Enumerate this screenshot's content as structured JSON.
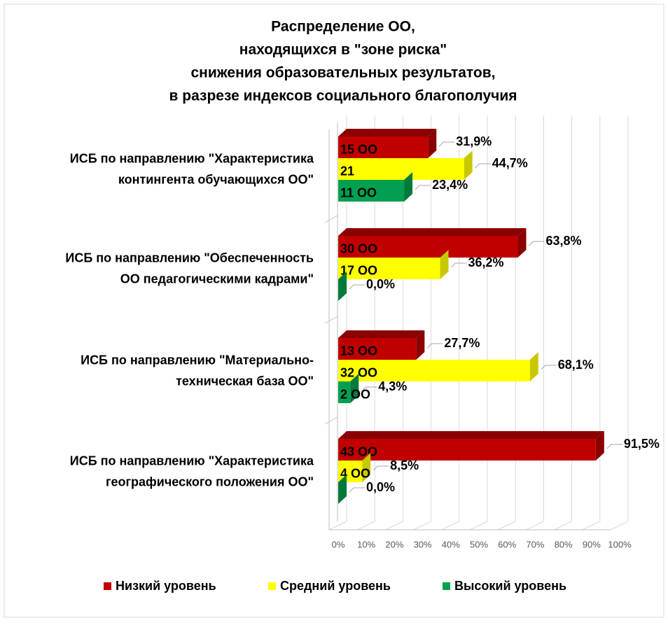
{
  "chart_data": {
    "type": "bar3d-horizontal",
    "title": [
      "Распределение ОО,",
      "находящихся в \"зоне риска\"",
      "снижения образовательных результатов,",
      "в разрезе индексов социального благополучия"
    ],
    "categories": [
      [
        "ИСБ по направлению \"Характеристика",
        "контингента обучающихся ОО\""
      ],
      [
        "ИСБ по направлению \"Обеспеченность",
        "ОО педагогическими кадрами\""
      ],
      [
        "ИСБ по направлению \"Материально-",
        "техническая база ОО\""
      ],
      [
        "ИСБ по направлению \"Характеристика",
        "географического положения ОО\""
      ]
    ],
    "series": [
      {
        "name": "Низкий уровень",
        "color": "#c00000",
        "side_color": "#8b0000",
        "values": [
          31.9,
          63.8,
          27.7,
          91.5
        ],
        "value_labels": [
          "31,9%",
          "63,8%",
          "27,7%",
          "91,5%"
        ],
        "count_labels": [
          "15  ОО",
          "30  ОО",
          "13  ОО",
          "43  ОО"
        ]
      },
      {
        "name": "Средний уровень",
        "color": "#ffff00",
        "side_color": "#c8c800",
        "values": [
          44.7,
          36.2,
          68.1,
          8.5
        ],
        "value_labels": [
          "44,7%",
          "36,2%",
          "68,1%",
          "8,5%"
        ],
        "count_labels": [
          "21",
          "17  ОО",
          "32  ОО",
          "4  ОО"
        ]
      },
      {
        "name": "Высокий уровень",
        "color": "#00a050",
        "side_color": "#007a3a",
        "values": [
          23.4,
          0.0,
          4.3,
          0.0
        ],
        "value_labels": [
          "23,4%",
          "0,0%",
          "4,3%",
          "0,0%"
        ],
        "count_labels": [
          "11  ОО",
          null,
          "2  ОО",
          null
        ]
      }
    ],
    "xlim": [
      0,
      100
    ],
    "xticks": [
      {
        "value": 0,
        "label": "0%"
      },
      {
        "value": 10,
        "label": "10%"
      },
      {
        "value": 20,
        "label": "20%"
      },
      {
        "value": 30,
        "label": "30%"
      },
      {
        "value": 40,
        "label": "40%"
      },
      {
        "value": 50,
        "label": "50%"
      },
      {
        "value": 60,
        "label": "60%"
      },
      {
        "value": 70,
        "label": "70%"
      },
      {
        "value": 80,
        "label": "80%"
      },
      {
        "value": 90,
        "label": "90%"
      },
      {
        "value": 100,
        "label": "100%"
      }
    ],
    "grid": true
  }
}
